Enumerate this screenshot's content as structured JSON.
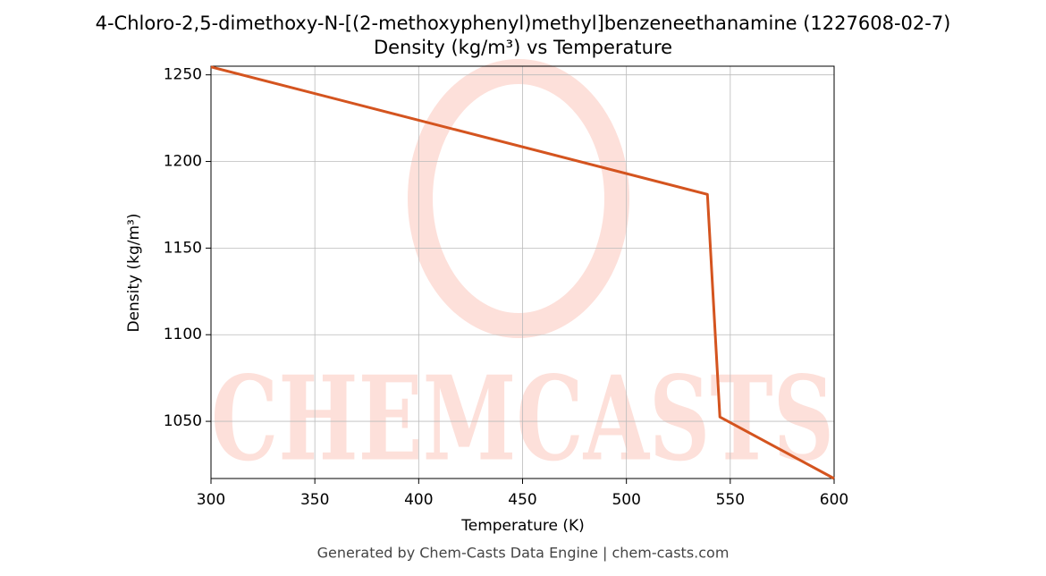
{
  "chart_data": {
    "type": "line",
    "title": "4-Chloro-2,5-dimethoxy-N-[(2-methoxyphenyl)methyl]benzeneethanamine (1227608-02-7)",
    "subtitle": "Density (kg/m³) vs Temperature",
    "x_label": "Temperature (K)",
    "y_label": "Density (kg/m³)",
    "footer": "Generated by Chem-Casts Data Engine | chem-casts.com",
    "watermark": "CHEMCASTS",
    "x": [
      300,
      539,
      545,
      600
    ],
    "series": [
      {
        "name": "Density",
        "color": "#d4541f",
        "values": [
          1254.6,
          1181,
          1052.5,
          1017
        ]
      }
    ],
    "xlim": [
      300,
      600
    ],
    "xticks": [
      300,
      350,
      400,
      450,
      500,
      550,
      600
    ],
    "ylim": [
      1017,
      1255
    ],
    "yticks": [
      1050,
      1100,
      1150,
      1200,
      1250
    ],
    "grid": true
  }
}
